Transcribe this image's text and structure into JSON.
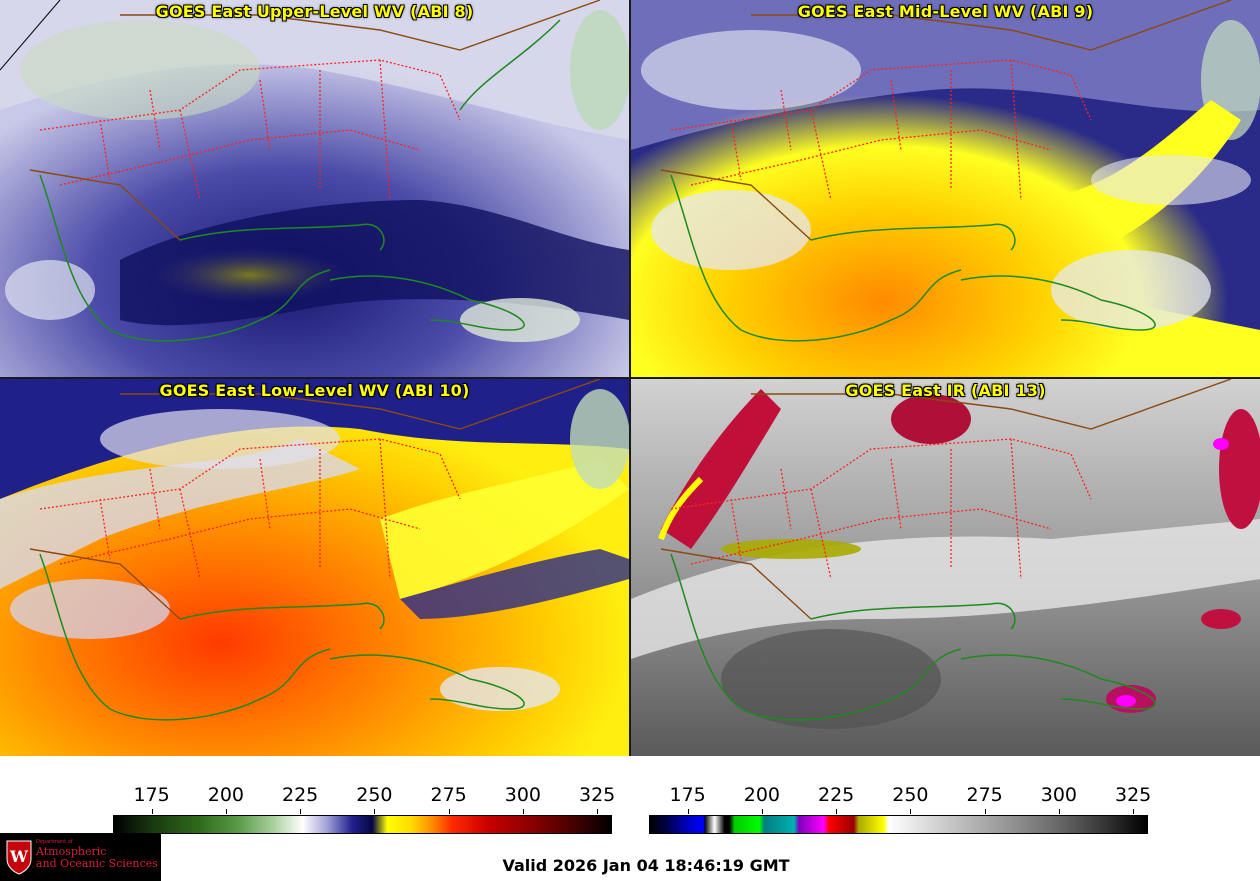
{
  "panels": [
    {
      "title": "GOES East Upper-Level WV (ABI 8)",
      "style": "wv_upper"
    },
    {
      "title": "GOES East Mid-Level WV (ABI 9)",
      "style": "wv_mid"
    },
    {
      "title": "GOES East Low-Level WV (ABI 10)",
      "style": "wv_low"
    },
    {
      "title": "GOES East IR (ABI 13)",
      "style": "ir"
    }
  ],
  "colorbar_left": {
    "ticks": [
      "175",
      "200",
      "225",
      "250",
      "275",
      "300",
      "325"
    ],
    "tick_values": [
      175,
      200,
      225,
      250,
      275,
      300,
      325
    ],
    "range": [
      162,
      330
    ]
  },
  "colorbar_right": {
    "ticks": [
      "175",
      "200",
      "225",
      "250",
      "275",
      "300",
      "325"
    ],
    "tick_values": [
      175,
      200,
      225,
      250,
      275,
      300,
      325
    ],
    "range": [
      162,
      330
    ]
  },
  "valid_time": "Valid 2026 Jan 04 18:46:19 GMT",
  "logo": {
    "department": "Department of",
    "line1": "Atmospheric",
    "line2": "and Oceanic Sciences"
  },
  "colors": {
    "title": "#ffff00",
    "state_borders": "#ff2020",
    "coastlines": "#1e8a1e",
    "country_borders": "#8a4a10"
  }
}
